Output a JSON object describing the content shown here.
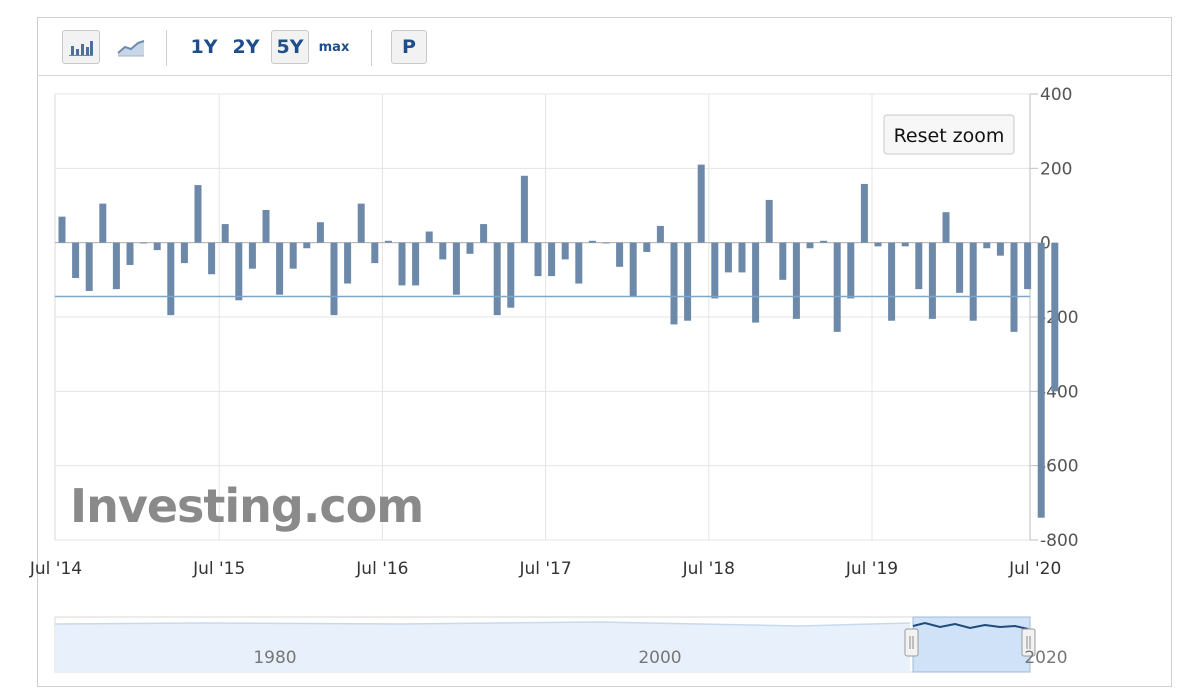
{
  "toolbar": {
    "chart_type_buttons": [
      {
        "icon": "bar-chart-icon",
        "selected": true
      },
      {
        "icon": "line-chart-icon",
        "selected": false
      }
    ],
    "ranges": [
      "1Y",
      "2Y",
      "5Y",
      "max"
    ],
    "selected_range": "5Y",
    "print_label": "P"
  },
  "reset_zoom_label": "Reset zoom",
  "watermark": "Investing.com",
  "colors": {
    "bar": "#6d89aa",
    "average_line": "#7fa6c6",
    "grid": "#e4e4e4",
    "navigator_fill": "#e8f1fb",
    "navigator_selected": "#cfe2f7",
    "navigator_line": "#1f4a7a"
  },
  "chart_data": {
    "type": "bar",
    "y_ticks": [
      "400",
      "200",
      "0",
      "-200",
      "-400",
      "-600",
      "-800"
    ],
    "ylim": [
      -800,
      400
    ],
    "x_tick_labels": [
      "Jul '14",
      "Jul '15",
      "Jul '16",
      "Jul '17",
      "Jul '18",
      "Jul '19",
      "Jul '20"
    ],
    "reference_line": -145,
    "grid": true,
    "frequency": "monthly",
    "start": "Jul '14",
    "values": [
      70,
      -95,
      -130,
      105,
      -125,
      -60,
      0,
      -20,
      -195,
      -55,
      155,
      -85,
      50,
      -155,
      -70,
      88,
      -140,
      -70,
      -15,
      55,
      -195,
      -110,
      105,
      -55,
      5,
      -115,
      -115,
      30,
      -45,
      -140,
      -30,
      50,
      -195,
      -175,
      180,
      -90,
      -90,
      -45,
      -110,
      5,
      0,
      -65,
      -145,
      -25,
      45,
      -220,
      -210,
      210,
      -150,
      -80,
      -80,
      -215,
      115,
      -100,
      -205,
      -15,
      5,
      -240,
      -150,
      158,
      -10,
      -210,
      -10,
      -125,
      -205,
      82,
      -135,
      -210,
      -15,
      -35,
      -240,
      -125,
      -740,
      -400
    ],
    "navigator": {
      "x_labels": [
        "1980",
        "2000",
        "2020"
      ]
    }
  }
}
